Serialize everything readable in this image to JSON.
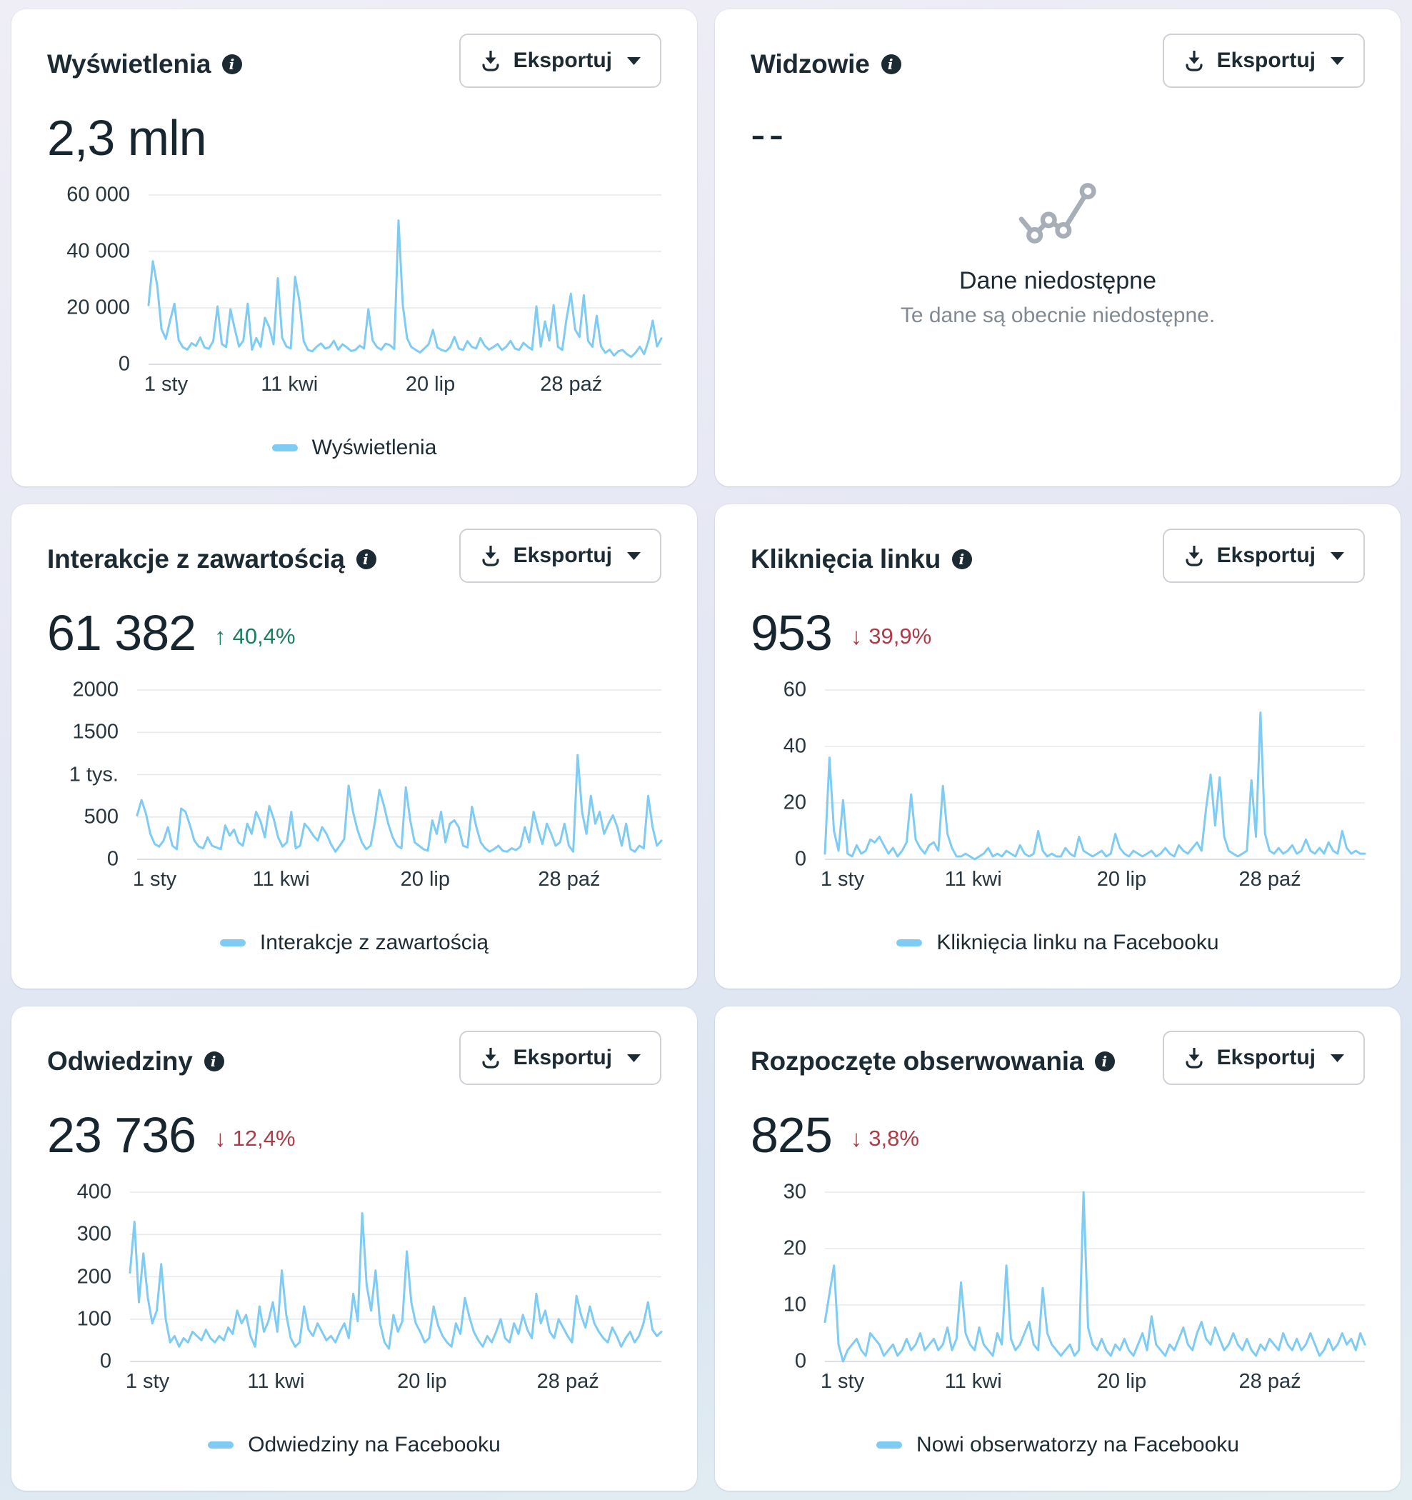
{
  "ui": {
    "export_label": "Eksportuj",
    "info_glyph": "i",
    "accent_line_color": "#7ecbf3",
    "positive_color": "#1d7d60",
    "negative_color": "#b03a45",
    "empty_icon": "line-chart-placeholder-icon"
  },
  "cards": [
    {
      "title": "Wyświetlenia",
      "value": "2,3 mln"
    },
    {
      "title": "Widzowie",
      "value": "--",
      "empty_title": "Dane niedostępne",
      "empty_subtitle": "Te dane są obecnie niedostępne."
    },
    {
      "title": "Interakcje z zawartością",
      "value": "61 382",
      "delta_arrow": "↑",
      "delta_value": "40,4%",
      "delta_direction": "up"
    },
    {
      "title": "Kliknięcia linku",
      "value": "953",
      "delta_arrow": "↓",
      "delta_value": "39,9%",
      "delta_direction": "down"
    },
    {
      "title": "Odwiedziny",
      "value": "23 736",
      "delta_arrow": "↓",
      "delta_value": "12,4%",
      "delta_direction": "down"
    },
    {
      "title": "Rozpoczęte obserwowania",
      "value": "825",
      "delta_arrow": "↓",
      "delta_value": "3,8%",
      "delta_direction": "down"
    }
  ],
  "chart_data": [
    {
      "id": "views",
      "type": "line",
      "title": "Wyświetlenia",
      "legend": "Wyświetlenia",
      "color": "#7ecbf3",
      "grid": true,
      "legend_position": "bottom-center",
      "ylim": [
        0,
        60000
      ],
      "yticks": [
        0,
        20000,
        40000,
        60000
      ],
      "ytick_labels": [
        "0",
        "20 000",
        "40 000",
        "60 000"
      ],
      "xticks": [
        {
          "label": "1 sty",
          "pos": 0.0
        },
        {
          "label": "11 kwi",
          "pos": 0.2747
        },
        {
          "label": "20 lip",
          "pos": 0.5495
        },
        {
          "label": "28 paź",
          "pos": 0.8242
        }
      ],
      "values": [
        21000,
        36500,
        28000,
        12500,
        9000,
        15500,
        21500,
        8500,
        6000,
        5200,
        7500,
        6500,
        9500,
        6000,
        5500,
        8200,
        20500,
        7200,
        6100,
        19500,
        12500,
        6300,
        8400,
        21500,
        5200,
        9300,
        6200,
        16500,
        13200,
        7100,
        30500,
        9400,
        6300,
        5600,
        31000,
        22500,
        8200,
        5100,
        4600,
        6200,
        7400,
        5600,
        6100,
        8300,
        5200,
        7100,
        6000,
        4700,
        5100,
        6600,
        5600,
        19500,
        8400,
        6100,
        5200,
        7300,
        6800,
        5400,
        51000,
        21000,
        9200,
        6100,
        5100,
        4200,
        5600,
        7100,
        12200,
        6000,
        5100,
        4600,
        6100,
        9700,
        5600,
        5100,
        8200,
        6200,
        5600,
        9300,
        6600,
        5200,
        6100,
        7200,
        5100,
        6200,
        8300,
        5600,
        5100,
        7600,
        6200,
        5200,
        20500,
        6300,
        15200,
        8400,
        21000,
        6200,
        5100,
        16200,
        25000,
        12300,
        9700,
        24500,
        8300,
        6200,
        17200,
        6300,
        4100,
        5200,
        3100,
        4600,
        5100,
        3600,
        2600,
        4100,
        6200,
        3600,
        8300,
        15500,
        6300,
        9200
      ]
    },
    {
      "id": "interactions",
      "type": "line",
      "title": "Interakcje z zawartością",
      "legend": "Interakcje z zawartością",
      "color": "#7ecbf3",
      "grid": true,
      "legend_position": "bottom-center",
      "ylim": [
        0,
        2000
      ],
      "yticks": [
        0,
        500,
        1000,
        1500,
        2000
      ],
      "ytick_labels": [
        "0",
        "500",
        "1 tys.",
        "1500",
        "2000"
      ],
      "xticks": [
        {
          "label": "1 sty",
          "pos": 0.0
        },
        {
          "label": "11 kwi",
          "pos": 0.2747
        },
        {
          "label": "20 lip",
          "pos": 0.5495
        },
        {
          "label": "28 paź",
          "pos": 0.8242
        }
      ],
      "values": [
        520,
        700,
        540,
        300,
        180,
        150,
        220,
        380,
        160,
        120,
        600,
        560,
        400,
        220,
        150,
        130,
        260,
        160,
        140,
        120,
        400,
        280,
        350,
        200,
        160,
        420,
        300,
        560,
        450,
        260,
        630,
        480,
        260,
        150,
        200,
        560,
        130,
        160,
        420,
        360,
        280,
        220,
        380,
        300,
        180,
        90,
        160,
        240,
        870,
        560,
        350,
        200,
        120,
        160,
        450,
        820,
        640,
        420,
        260,
        160,
        130,
        850,
        460,
        200,
        160,
        120,
        100,
        460,
        300,
        560,
        200,
        420,
        460,
        380,
        160,
        140,
        620,
        380,
        200,
        130,
        90,
        120,
        160,
        100,
        90,
        130,
        110,
        150,
        380,
        200,
        560,
        350,
        180,
        420,
        300,
        160,
        200,
        420,
        160,
        90,
        1230,
        560,
        300,
        750,
        420,
        560,
        300,
        420,
        520,
        380,
        160,
        420,
        120,
        90,
        160,
        130,
        750,
        380,
        160,
        220
      ]
    },
    {
      "id": "link_clicks",
      "type": "line",
      "title": "Kliknięcia linku",
      "legend": "Kliknięcia linku na Facebooku",
      "color": "#7ecbf3",
      "grid": true,
      "legend_position": "bottom-center",
      "ylim": [
        0,
        60
      ],
      "yticks": [
        0,
        20,
        40,
        60
      ],
      "ytick_labels": [
        "0",
        "20",
        "40",
        "60"
      ],
      "xticks": [
        {
          "label": "1 sty",
          "pos": 0.0
        },
        {
          "label": "11 kwi",
          "pos": 0.2747
        },
        {
          "label": "20 lip",
          "pos": 0.5495
        },
        {
          "label": "28 paź",
          "pos": 0.8242
        }
      ],
      "values": [
        2,
        36,
        10,
        3,
        21,
        2,
        1,
        5,
        2,
        3,
        7,
        6,
        8,
        5,
        2,
        4,
        1,
        3,
        6,
        23,
        7,
        4,
        2,
        5,
        6,
        3,
        26,
        9,
        4,
        1,
        1,
        2,
        1,
        0,
        1,
        2,
        4,
        1,
        2,
        1,
        3,
        2,
        1,
        5,
        2,
        1,
        2,
        10,
        3,
        1,
        2,
        1,
        1,
        4,
        2,
        1,
        8,
        3,
        2,
        1,
        2,
        3,
        1,
        2,
        9,
        4,
        2,
        1,
        3,
        2,
        1,
        2,
        3,
        1,
        2,
        4,
        2,
        1,
        5,
        3,
        2,
        4,
        6,
        3,
        18,
        30,
        12,
        29,
        8,
        3,
        2,
        1,
        2,
        3,
        28,
        8,
        52,
        9,
        3,
        2,
        4,
        2,
        3,
        5,
        2,
        3,
        7,
        3,
        2,
        4,
        2,
        6,
        3,
        2,
        10,
        4,
        2,
        3,
        2,
        2
      ]
    },
    {
      "id": "visits",
      "type": "line",
      "title": "Odwiedziny",
      "legend": "Odwiedziny na Facebooku",
      "color": "#7ecbf3",
      "grid": true,
      "legend_position": "bottom-center",
      "ylim": [
        0,
        400
      ],
      "yticks": [
        0,
        100,
        200,
        300,
        400
      ],
      "ytick_labels": [
        "0",
        "100",
        "200",
        "300",
        "400"
      ],
      "xticks": [
        {
          "label": "1 sty",
          "pos": 0.0
        },
        {
          "label": "11 kwi",
          "pos": 0.2747
        },
        {
          "label": "20 lip",
          "pos": 0.5495
        },
        {
          "label": "28 paź",
          "pos": 0.8242
        }
      ],
      "values": [
        210,
        330,
        140,
        255,
        150,
        90,
        120,
        230,
        100,
        45,
        60,
        35,
        55,
        45,
        70,
        60,
        50,
        75,
        55,
        45,
        60,
        50,
        80,
        65,
        120,
        90,
        110,
        60,
        35,
        130,
        70,
        95,
        140,
        70,
        215,
        110,
        55,
        35,
        45,
        130,
        75,
        60,
        90,
        70,
        50,
        60,
        45,
        70,
        90,
        55,
        160,
        95,
        350,
        180,
        120,
        215,
        90,
        45,
        30,
        110,
        70,
        95,
        260,
        140,
        90,
        70,
        45,
        55,
        130,
        85,
        60,
        45,
        35,
        90,
        65,
        150,
        105,
        70,
        50,
        35,
        60,
        45,
        70,
        100,
        55,
        45,
        90,
        65,
        110,
        75,
        55,
        160,
        90,
        120,
        70,
        55,
        100,
        80,
        60,
        45,
        155,
        110,
        80,
        130,
        90,
        70,
        55,
        45,
        80,
        60,
        35,
        55,
        70,
        45,
        60,
        90,
        140,
        75,
        60,
        70
      ]
    },
    {
      "id": "follows",
      "type": "line",
      "title": "Rozpoczęte obserwowania",
      "legend": "Nowi obserwatorzy na Facebooku",
      "color": "#7ecbf3",
      "grid": true,
      "legend_position": "bottom-center",
      "ylim": [
        0,
        30
      ],
      "yticks": [
        0,
        10,
        20,
        30
      ],
      "ytick_labels": [
        "0",
        "10",
        "20",
        "30"
      ],
      "xticks": [
        {
          "label": "1 sty",
          "pos": 0.0
        },
        {
          "label": "11 kwi",
          "pos": 0.2747
        },
        {
          "label": "20 lip",
          "pos": 0.5495
        },
        {
          "label": "28 paź",
          "pos": 0.8242
        }
      ],
      "values": [
        7,
        12,
        17,
        3,
        0,
        2,
        3,
        4,
        2,
        1,
        5,
        4,
        3,
        1,
        2,
        3,
        1,
        2,
        4,
        2,
        3,
        5,
        2,
        3,
        4,
        2,
        3,
        6,
        2,
        4,
        14,
        5,
        3,
        2,
        6,
        3,
        2,
        1,
        5,
        3,
        17,
        4,
        2,
        3,
        5,
        7,
        3,
        2,
        13,
        5,
        3,
        2,
        1,
        2,
        3,
        1,
        2,
        30,
        6,
        3,
        2,
        4,
        2,
        1,
        3,
        2,
        4,
        2,
        1,
        3,
        5,
        2,
        8,
        3,
        2,
        1,
        3,
        2,
        4,
        6,
        3,
        2,
        5,
        7,
        4,
        3,
        6,
        4,
        2,
        3,
        5,
        3,
        2,
        4,
        2,
        1,
        3,
        2,
        4,
        3,
        2,
        5,
        3,
        2,
        4,
        2,
        3,
        5,
        3,
        1,
        2,
        4,
        2,
        3,
        5,
        3,
        4,
        2,
        5,
        3
      ]
    }
  ]
}
